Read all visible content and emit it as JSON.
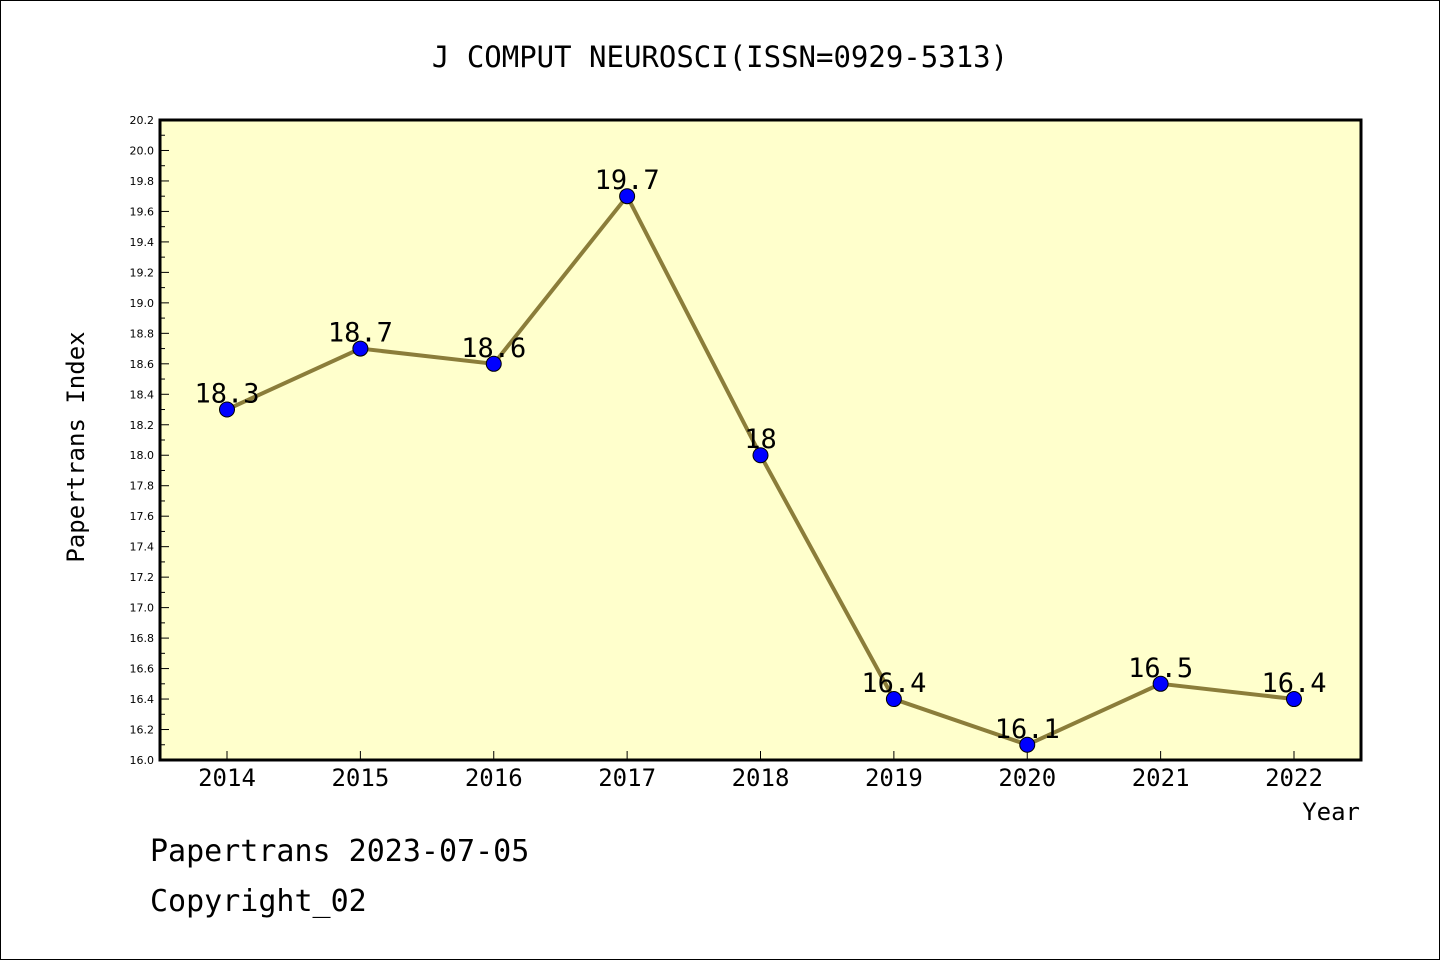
{
  "chart_data": {
    "type": "line",
    "title": "J COMPUT NEUROSCI(ISSN=0929-5313)",
    "xlabel": "Year",
    "ylabel": "Papertrans Index",
    "categories": [
      "2014",
      "2015",
      "2016",
      "2017",
      "2018",
      "2019",
      "2020",
      "2021",
      "2022"
    ],
    "series": [
      {
        "values": [
          18.3,
          18.7,
          18.6,
          19.7,
          18.0,
          16.4,
          16.1,
          16.5,
          16.4
        ]
      }
    ],
    "data_labels": [
      "18.3",
      "18.7",
      "18.6",
      "19.7",
      "18",
      "16.4",
      "16.1",
      "16.5",
      "16.4"
    ],
    "ylim": [
      16.0,
      20.2
    ],
    "yticks": [
      "16.0",
      "16.2",
      "16.4",
      "16.6",
      "16.8",
      "17.0",
      "17.2",
      "17.4",
      "17.6",
      "17.8",
      "18.0",
      "18.2",
      "18.4",
      "18.6",
      "18.8",
      "19.0",
      "19.2",
      "19.4",
      "19.6",
      "19.8",
      "20.0",
      "20.2"
    ],
    "grid": false,
    "legend": "none",
    "colors": {
      "plot_background": "#ffffcc",
      "line": "#8b7d3a",
      "marker": "#0000ff"
    }
  },
  "footer": {
    "line1": "Papertrans 2023-07-05",
    "line2": "Copyright_02"
  }
}
